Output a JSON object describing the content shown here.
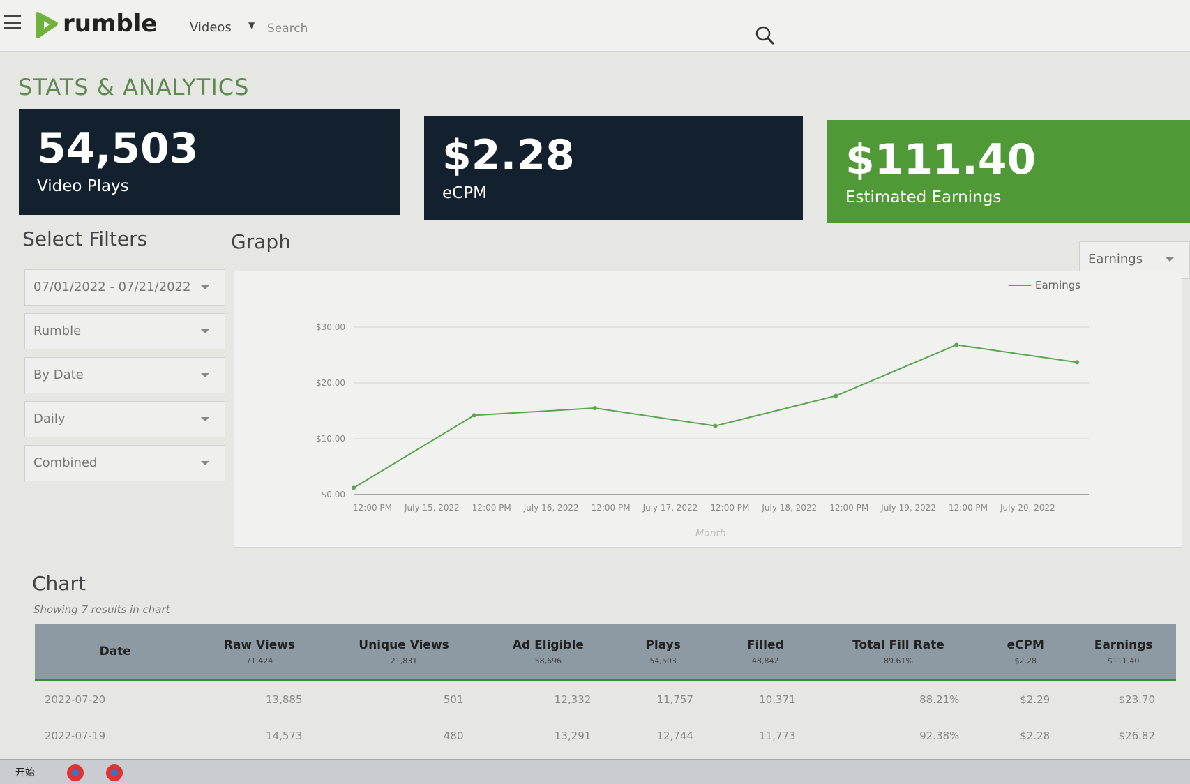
{
  "nav": {
    "logo": "rumble",
    "menu": "Videos",
    "search_placeholder": "Search"
  },
  "header": {
    "title": "STATS & ANALYTICS"
  },
  "stats": [
    {
      "value": "54,503",
      "label": "Video Plays"
    },
    {
      "value": "$2.28",
      "label": "eCPM"
    },
    {
      "value": "$111.40",
      "label": "Estimated Earnings"
    }
  ],
  "filters": {
    "title": "Select Filters",
    "items": [
      "07/01/2022 - 07/21/2022",
      "Rumble",
      "By Date",
      "Daily",
      "Combined"
    ]
  },
  "graph": {
    "title": "Graph",
    "selector": "Earnings",
    "chart_data": {
      "type": "line",
      "x_label": "Month",
      "x_tick_labels": [
        "12:00 PM",
        "July 15, 2022",
        "12:00 PM",
        "July 16, 2022",
        "12:00 PM",
        "July 17, 2022",
        "12:00 PM",
        "July 18, 2022",
        "12:00 PM",
        "July 19, 2022",
        "12:00 PM",
        "July 20, 2022"
      ],
      "series": [
        {
          "name": "Earnings",
          "color": "#5aa552",
          "values": [
            1.2,
            14.2,
            15.5,
            12.3,
            17.68,
            26.82,
            23.7
          ]
        }
      ],
      "ylim": [
        0,
        30
      ],
      "yticks": [
        {
          "value": 0,
          "label": "$0.00"
        },
        {
          "value": 10,
          "label": "$10.00"
        },
        {
          "value": 20,
          "label": "$20.00"
        },
        {
          "value": 30,
          "label": "$30.00"
        }
      ],
      "grid": true,
      "legend": "top-right"
    }
  },
  "table": {
    "title": "Chart",
    "subtitle": "Showing 7 results in chart",
    "columns": [
      {
        "name": "Date"
      },
      {
        "name": "Raw Views",
        "total": "71,424"
      },
      {
        "name": "Unique Views",
        "total": "21,831"
      },
      {
        "name": "Ad Eligible",
        "total": "58,696"
      },
      {
        "name": "Plays",
        "total": "54,503"
      },
      {
        "name": "Filled",
        "total": "48,842"
      },
      {
        "name": "Total Fill Rate",
        "total": "89.61%"
      },
      {
        "name": "eCPM",
        "total": "$2.28"
      },
      {
        "name": "Earnings",
        "total": "$111.40"
      }
    ],
    "rows": [
      [
        "2022-07-20",
        "13,885",
        "501",
        "12,332",
        "11,757",
        "10,371",
        "88.21%",
        "$2.29",
        "$23.70"
      ],
      [
        "2022-07-19",
        "14,573",
        "480",
        "13,291",
        "12,744",
        "11,773",
        "92.38%",
        "$2.28",
        "$26.82"
      ]
    ]
  },
  "taskbar": {
    "start": "开始"
  }
}
